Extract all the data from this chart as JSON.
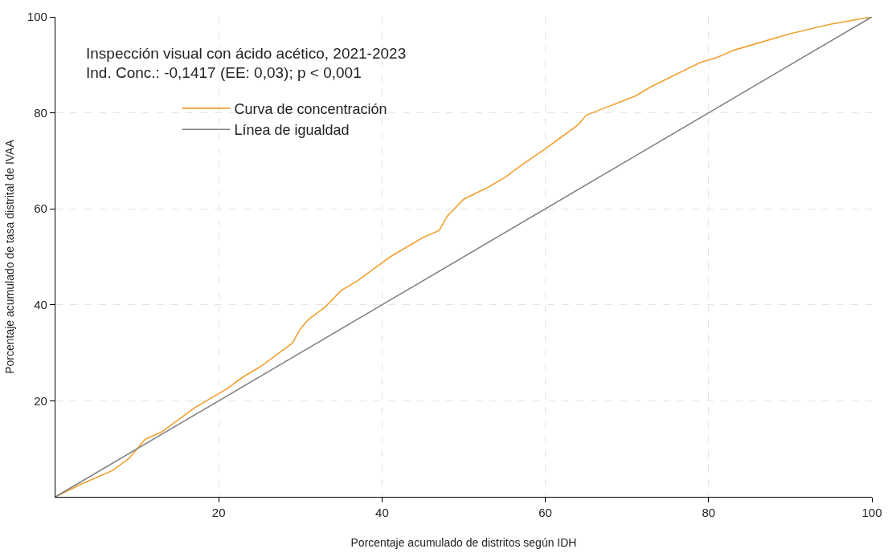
{
  "chart_data": {
    "type": "line",
    "xlabel": "Porcentaje acumulado de distritos según IDH",
    "ylabel": "Porcentaje acumulado de tasa distrital de IVAA",
    "annotations": [
      "Inspección visual con ácido acético, 2021-2023",
      "Ind. Conc.: -0,1417 (EE: 0,03); p < 0,001"
    ],
    "series": [
      {
        "name": "Curva de concentración",
        "color": "#f0a030",
        "x": [
          0,
          3,
          5,
          7,
          9,
          10,
          11,
          13,
          15,
          17,
          19,
          21,
          23,
          25,
          27,
          29,
          30,
          31,
          33,
          35,
          37,
          39,
          41,
          43,
          45,
          47,
          48,
          50,
          53,
          55,
          57,
          60,
          62,
          64,
          65,
          68,
          71,
          73,
          76,
          79,
          81,
          83,
          86,
          90,
          95,
          100
        ],
        "values": [
          0,
          2.5,
          4,
          5.5,
          8,
          10,
          12,
          13.5,
          16,
          18.5,
          20.5,
          22.5,
          25,
          27,
          29.5,
          32,
          35,
          37,
          39.5,
          43,
          45,
          47.5,
          50,
          52,
          54,
          55.5,
          58.5,
          62,
          64.5,
          66.5,
          69,
          72.5,
          75,
          77.5,
          79.5,
          81.5,
          83.5,
          85.5,
          88,
          90.5,
          91.5,
          93,
          94.5,
          96.5,
          98.5,
          100
        ]
      },
      {
        "name": "Línea de igualdad",
        "color": "#808080",
        "x": [
          0,
          100
        ],
        "values": [
          0,
          100
        ]
      }
    ],
    "xlim": [
      0,
      100
    ],
    "ylim": [
      0,
      100
    ],
    "xticks": [
      20,
      40,
      60,
      80,
      100
    ],
    "yticks": [
      20,
      40,
      60,
      80,
      100
    ],
    "grid": true,
    "legend": "top left",
    "line_style": "solid",
    "marker": "none"
  }
}
